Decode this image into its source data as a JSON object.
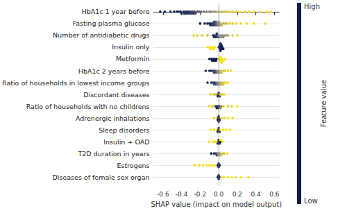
{
  "chart_data": {
    "type": "scatter",
    "marker": "circle",
    "grid": true,
    "xlabel": "SHAP value (impact on model output)",
    "xlim": [
      -0.7,
      0.65
    ],
    "xticks": [
      -0.6,
      -0.4,
      -0.2,
      {
        "value": 0,
        "label": "0.0"
      },
      0.2,
      0.4,
      0.6
    ],
    "categories": [
      "HbA1c 1 year before",
      "Fasting plasma glucose",
      "Number of antidiabetic drugs",
      "Insulin only",
      "Metformin",
      "HbA1c 2 years before",
      "Ratio of households in lowest income groups",
      "Discordant diseases",
      "Ratio of households with no childrens",
      "Adrenergic inhalations",
      "Sleep disorders",
      "Insulin + OAD",
      "T2D duration in years",
      "Estrogens",
      "Diseases of female sex organ"
    ],
    "values": [
      [
        -0.63,
        -0.58,
        -0.52,
        -0.48,
        -0.45,
        -0.43,
        -0.41,
        -0.4,
        -0.38,
        -0.37,
        -0.36,
        -0.35,
        -0.34,
        -0.33,
        -0.32,
        -0.31,
        -0.3,
        -0.29,
        -0.28,
        -0.27,
        -0.26,
        -0.25,
        -0.23,
        -0.21,
        -0.19,
        -0.16,
        -0.13,
        -0.1,
        -0.08,
        -0.05,
        -0.03,
        0.0,
        0.03,
        0.06,
        0.09,
        0.12,
        0.15,
        0.19,
        0.23,
        0.28,
        0.33,
        0.38,
        0.45,
        0.52,
        0.56
      ],
      [
        -0.2,
        -0.15,
        -0.12,
        -0.1,
        -0.09,
        -0.08,
        -0.07,
        -0.06,
        -0.05,
        -0.05,
        -0.04,
        -0.03,
        -0.03,
        -0.02,
        -0.01,
        0.0,
        0.0,
        0.01,
        0.02,
        0.03,
        0.05,
        0.07,
        0.09,
        0.12,
        0.15,
        0.19,
        0.24,
        0.3,
        0.38,
        0.5
      ],
      [
        -0.27,
        -0.23,
        -0.18,
        -0.12,
        -0.06,
        -0.05,
        -0.04,
        -0.03,
        -0.02,
        -0.02,
        -0.01,
        0.0,
        0.01,
        0.02,
        0.03,
        0.04,
        0.05,
        0.06,
        0.08,
        0.1,
        0.15,
        0.2
      ],
      [
        -0.12,
        -0.1,
        -0.09,
        -0.08,
        -0.07,
        -0.06,
        -0.05,
        -0.04,
        0.0,
        0.01,
        0.01,
        0.02,
        0.02,
        0.02,
        0.03,
        0.03,
        0.04,
        0.05
      ],
      [
        -0.1,
        -0.08,
        -0.07,
        -0.06,
        -0.05,
        -0.04,
        -0.03,
        -0.02,
        0.0,
        0.01,
        0.02,
        0.02,
        0.03,
        0.03,
        0.04,
        0.05,
        0.07
      ],
      [
        -0.14,
        -0.1,
        -0.08,
        -0.06,
        -0.05,
        -0.04,
        -0.03,
        -0.02,
        -0.01,
        0.0,
        0.01,
        0.02,
        0.03,
        0.05,
        0.07,
        0.1,
        0.13
      ],
      [
        -0.12,
        -0.08,
        -0.06,
        -0.05,
        -0.04,
        -0.03,
        -0.02,
        -0.01,
        0.0,
        0.01,
        0.02,
        0.03,
        0.04,
        0.05,
        0.06,
        0.08,
        0.1
      ],
      [
        -0.09,
        -0.06,
        -0.04,
        -0.02,
        -0.01,
        0.0,
        0.0,
        0.01,
        0.02,
        0.04,
        0.06
      ],
      [
        -0.1,
        -0.07,
        -0.05,
        -0.03,
        -0.02,
        -0.01,
        0.0,
        0.01,
        0.02,
        0.03,
        0.05,
        0.1,
        0.14,
        0.2
      ],
      [
        -0.05,
        -0.02,
        -0.01,
        0.0,
        0.0,
        0.0,
        0.01,
        0.03,
        0.06,
        0.1,
        0.15
      ],
      [
        -0.08,
        -0.05,
        -0.02,
        -0.01,
        0.0,
        0.0,
        0.01,
        0.02,
        0.05,
        0.08,
        0.12
      ],
      [
        -0.1,
        -0.06,
        -0.04,
        -0.02,
        -0.01,
        0.0,
        0.0,
        0.01,
        0.02,
        0.02,
        0.04
      ],
      [
        -0.08,
        -0.05,
        -0.03,
        -0.02,
        -0.01,
        0.0,
        0.01,
        0.02,
        0.04,
        0.06,
        0.09
      ],
      [
        -0.26,
        -0.21,
        -0.17,
        -0.13,
        -0.1,
        -0.07,
        -0.04,
        -0.01,
        0.0,
        0.0,
        0.01
      ],
      [
        -0.01,
        0.0,
        0.0,
        0.01,
        0.03,
        0.06,
        0.1,
        0.14,
        0.18,
        0.24,
        0.32
      ]
    ],
    "feature_values": [
      [
        0.02,
        0.03,
        0.05,
        0.05,
        0.06,
        0.08,
        0.05,
        0.1,
        0.08,
        0.06,
        0.12,
        0.1,
        0.08,
        0.15,
        0.1,
        0.12,
        0.18,
        0.15,
        0.2,
        0.12,
        0.22,
        0.18,
        0.25,
        0.28,
        0.35,
        0.4,
        0.45,
        0.5,
        0.5,
        0.55,
        0.65,
        0.7,
        0.75,
        0.8,
        0.85,
        0.88,
        0.9,
        0.92,
        0.95,
        0.95,
        0.97,
        0.98,
        0.98,
        1.0,
        1.0
      ],
      [
        0.02,
        0.05,
        0.05,
        0.08,
        0.1,
        0.1,
        0.12,
        0.15,
        0.15,
        0.2,
        0.2,
        0.25,
        0.3,
        0.4,
        0.45,
        0.5,
        0.5,
        0.55,
        0.65,
        0.7,
        0.75,
        0.8,
        0.85,
        0.9,
        0.92,
        0.95,
        0.97,
        0.98,
        1.0,
        1.0
      ],
      [
        0.95,
        0.9,
        0.9,
        0.85,
        0.05,
        0.05,
        0.1,
        0.1,
        0.15,
        0.1,
        0.2,
        0.45,
        0.5,
        0.5,
        0.55,
        0.5,
        0.45,
        0.6,
        0.55,
        0.6,
        0.9,
        0.95
      ],
      [
        1,
        1,
        1,
        1,
        1,
        1,
        1,
        1,
        0,
        0,
        0,
        0,
        0,
        0,
        0,
        0,
        0,
        0
      ],
      [
        0,
        0,
        0,
        0,
        0,
        0,
        0,
        0,
        1,
        1,
        1,
        1,
        1,
        1,
        1,
        1,
        1
      ],
      [
        0.05,
        0.08,
        0.1,
        0.15,
        0.2,
        0.2,
        0.25,
        0.45,
        0.5,
        0.5,
        0.7,
        0.75,
        0.8,
        0.85,
        0.9,
        0.95,
        1.0
      ],
      [
        0.05,
        0.1,
        0.15,
        0.2,
        0.15,
        0.25,
        0.4,
        0.45,
        0.5,
        0.55,
        0.7,
        0.75,
        0.8,
        0.85,
        0.9,
        0.95,
        1.0
      ],
      [
        0.9,
        0.85,
        0.8,
        0.75,
        0.05,
        0.0,
        0.1,
        0.05,
        0.8,
        0.9,
        0.95
      ],
      [
        0.95,
        0.9,
        0.85,
        0.1,
        0.05,
        0.1,
        0.05,
        0.15,
        0.5,
        0.55,
        0.85,
        0.9,
        0.95,
        1.0
      ],
      [
        0.9,
        0.85,
        0,
        0,
        0,
        0,
        0,
        0.9,
        0.95,
        1,
        1
      ],
      [
        1,
        1,
        1,
        0,
        0,
        0,
        0,
        1,
        1,
        1,
        1
      ],
      [
        1,
        1,
        1,
        1,
        0,
        0,
        0,
        0,
        0,
        1,
        1
      ],
      [
        0.05,
        0.1,
        0.15,
        0.2,
        0.45,
        0.5,
        0.55,
        0.7,
        0.8,
        0.9,
        0.95
      ],
      [
        1,
        1,
        1,
        1,
        1,
        1,
        1,
        0,
        0,
        0,
        0
      ],
      [
        0,
        0,
        0,
        0,
        1,
        1,
        1,
        1,
        1,
        1,
        1
      ]
    ],
    "color_bar": {
      "label": "Feature value",
      "range": [
        0,
        1
      ],
      "ticks": [
        {
          "value": 0,
          "label": "Low"
        },
        {
          "value": 1,
          "label": "High"
        }
      ],
      "colors": [
        "#0b1d51",
        "#8a8a82",
        "#f7e11a"
      ]
    }
  }
}
